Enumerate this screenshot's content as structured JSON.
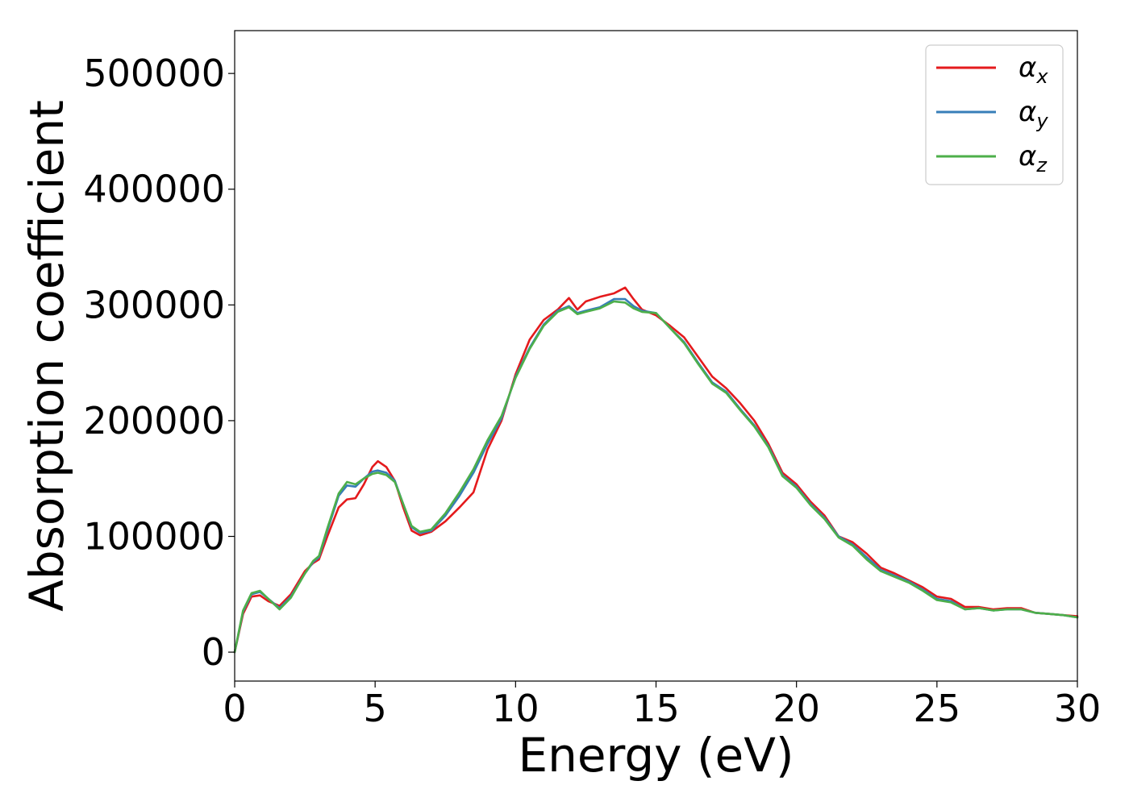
{
  "chart_data": {
    "type": "line",
    "title": "",
    "xlabel": "Energy (eV)",
    "ylabel": "Absorption coefficient",
    "xlim": [
      0,
      30
    ],
    "ylim": [
      -25000,
      537000
    ],
    "xticks": [
      0,
      5,
      10,
      15,
      20,
      25,
      30
    ],
    "xtick_labels": [
      "0",
      "5",
      "10",
      "15",
      "20",
      "25",
      "30"
    ],
    "yticks": [
      0,
      100000,
      200000,
      300000,
      400000,
      500000
    ],
    "ytick_labels": [
      "0",
      "100000",
      "200000",
      "300000",
      "400000",
      "500000"
    ],
    "grid": false,
    "legend_position": "top-right",
    "series": [
      {
        "name": "α",
        "subscript": "x",
        "color": "#e41a1c",
        "points": [
          [
            0,
            0
          ],
          [
            0.3,
            33000
          ],
          [
            0.6,
            48000
          ],
          [
            0.9,
            49000
          ],
          [
            1.2,
            44000
          ],
          [
            1.6,
            40000
          ],
          [
            2.0,
            50000
          ],
          [
            2.5,
            70000
          ],
          [
            2.8,
            77000
          ],
          [
            3.0,
            80000
          ],
          [
            3.3,
            100000
          ],
          [
            3.7,
            125000
          ],
          [
            4.0,
            132000
          ],
          [
            4.3,
            133000
          ],
          [
            4.6,
            145000
          ],
          [
            4.9,
            160000
          ],
          [
            5.1,
            165000
          ],
          [
            5.4,
            160000
          ],
          [
            5.7,
            148000
          ],
          [
            6.0,
            125000
          ],
          [
            6.3,
            105000
          ],
          [
            6.6,
            101000
          ],
          [
            7.0,
            104000
          ],
          [
            7.5,
            113000
          ],
          [
            8.0,
            125000
          ],
          [
            8.5,
            138000
          ],
          [
            9.0,
            175000
          ],
          [
            9.5,
            200000
          ],
          [
            10.0,
            240000
          ],
          [
            10.5,
            270000
          ],
          [
            11.0,
            287000
          ],
          [
            11.5,
            296000
          ],
          [
            11.9,
            306000
          ],
          [
            12.2,
            296000
          ],
          [
            12.5,
            303000
          ],
          [
            13.0,
            307000
          ],
          [
            13.5,
            310000
          ],
          [
            13.9,
            315000
          ],
          [
            14.2,
            305000
          ],
          [
            14.5,
            296000
          ],
          [
            15.0,
            291000
          ],
          [
            15.5,
            282000
          ],
          [
            16.0,
            272000
          ],
          [
            16.5,
            255000
          ],
          [
            17.0,
            238000
          ],
          [
            17.5,
            228000
          ],
          [
            18.0,
            215000
          ],
          [
            18.5,
            200000
          ],
          [
            19.0,
            180000
          ],
          [
            19.5,
            155000
          ],
          [
            20.0,
            145000
          ],
          [
            20.5,
            130000
          ],
          [
            21.0,
            118000
          ],
          [
            21.5,
            100000
          ],
          [
            22.0,
            95000
          ],
          [
            22.5,
            85000
          ],
          [
            23.0,
            73000
          ],
          [
            23.5,
            68000
          ],
          [
            24.0,
            62000
          ],
          [
            24.5,
            56000
          ],
          [
            25.0,
            48000
          ],
          [
            25.5,
            46000
          ],
          [
            26.0,
            39000
          ],
          [
            26.5,
            39000
          ],
          [
            27.0,
            37000
          ],
          [
            27.5,
            38000
          ],
          [
            28.0,
            38000
          ],
          [
            28.5,
            34000
          ],
          [
            29.0,
            33000
          ],
          [
            29.5,
            32000
          ],
          [
            30.0,
            31000
          ]
        ]
      },
      {
        "name": "α",
        "subscript": "y",
        "color": "#377eb8",
        "points": [
          [
            0,
            0
          ],
          [
            0.3,
            35000
          ],
          [
            0.6,
            50000
          ],
          [
            0.9,
            52000
          ],
          [
            1.2,
            46000
          ],
          [
            1.6,
            38000
          ],
          [
            2.0,
            48000
          ],
          [
            2.5,
            68000
          ],
          [
            2.8,
            78000
          ],
          [
            3.0,
            82000
          ],
          [
            3.3,
            105000
          ],
          [
            3.7,
            135000
          ],
          [
            4.0,
            144000
          ],
          [
            4.3,
            143000
          ],
          [
            4.6,
            150000
          ],
          [
            4.9,
            156000
          ],
          [
            5.1,
            157000
          ],
          [
            5.4,
            155000
          ],
          [
            5.7,
            148000
          ],
          [
            6.0,
            128000
          ],
          [
            6.3,
            108000
          ],
          [
            6.6,
            103000
          ],
          [
            7.0,
            105000
          ],
          [
            7.5,
            118000
          ],
          [
            8.0,
            135000
          ],
          [
            8.5,
            155000
          ],
          [
            9.0,
            180000
          ],
          [
            9.5,
            202000
          ],
          [
            10.0,
            238000
          ],
          [
            10.5,
            263000
          ],
          [
            11.0,
            283000
          ],
          [
            11.5,
            295000
          ],
          [
            11.9,
            299000
          ],
          [
            12.2,
            293000
          ],
          [
            12.5,
            295000
          ],
          [
            13.0,
            298000
          ],
          [
            13.5,
            305000
          ],
          [
            13.9,
            305000
          ],
          [
            14.2,
            299000
          ],
          [
            14.5,
            295000
          ],
          [
            15.0,
            293000
          ],
          [
            15.5,
            280000
          ],
          [
            16.0,
            268000
          ],
          [
            16.5,
            250000
          ],
          [
            17.0,
            233000
          ],
          [
            17.5,
            225000
          ],
          [
            18.0,
            210000
          ],
          [
            18.5,
            196000
          ],
          [
            19.0,
            178000
          ],
          [
            19.5,
            153000
          ],
          [
            20.0,
            143000
          ],
          [
            20.5,
            128000
          ],
          [
            21.0,
            116000
          ],
          [
            21.5,
            100000
          ],
          [
            22.0,
            93000
          ],
          [
            22.5,
            82000
          ],
          [
            23.0,
            71000
          ],
          [
            23.5,
            66000
          ],
          [
            24.0,
            61000
          ],
          [
            24.5,
            54000
          ],
          [
            25.0,
            46000
          ],
          [
            25.5,
            44000
          ],
          [
            26.0,
            37000
          ],
          [
            26.5,
            38000
          ],
          [
            27.0,
            36000
          ],
          [
            27.5,
            37000
          ],
          [
            28.0,
            37000
          ],
          [
            28.5,
            34000
          ],
          [
            29.0,
            33000
          ],
          [
            29.5,
            32000
          ],
          [
            30.0,
            30000
          ]
        ]
      },
      {
        "name": "α",
        "subscript": "z",
        "color": "#4daf4a",
        "points": [
          [
            0,
            0
          ],
          [
            0.3,
            36000
          ],
          [
            0.6,
            51000
          ],
          [
            0.9,
            53000
          ],
          [
            1.2,
            46000
          ],
          [
            1.6,
            37000
          ],
          [
            2.0,
            47000
          ],
          [
            2.5,
            68000
          ],
          [
            2.8,
            79000
          ],
          [
            3.0,
            83000
          ],
          [
            3.3,
            107000
          ],
          [
            3.7,
            137000
          ],
          [
            4.0,
            147000
          ],
          [
            4.3,
            145000
          ],
          [
            4.6,
            150000
          ],
          [
            4.9,
            154000
          ],
          [
            5.1,
            155000
          ],
          [
            5.4,
            153000
          ],
          [
            5.7,
            147000
          ],
          [
            6.0,
            128000
          ],
          [
            6.3,
            109000
          ],
          [
            6.6,
            104000
          ],
          [
            7.0,
            106000
          ],
          [
            7.5,
            120000
          ],
          [
            8.0,
            138000
          ],
          [
            8.5,
            158000
          ],
          [
            9.0,
            183000
          ],
          [
            9.5,
            204000
          ],
          [
            10.0,
            237000
          ],
          [
            10.5,
            262000
          ],
          [
            11.0,
            282000
          ],
          [
            11.5,
            294000
          ],
          [
            11.9,
            298000
          ],
          [
            12.2,
            292000
          ],
          [
            12.5,
            294000
          ],
          [
            13.0,
            297000
          ],
          [
            13.5,
            303000
          ],
          [
            13.9,
            302000
          ],
          [
            14.2,
            297000
          ],
          [
            14.5,
            294000
          ],
          [
            15.0,
            293000
          ],
          [
            15.5,
            280000
          ],
          [
            16.0,
            267000
          ],
          [
            16.5,
            249000
          ],
          [
            17.0,
            232000
          ],
          [
            17.5,
            224000
          ],
          [
            18.0,
            209000
          ],
          [
            18.5,
            195000
          ],
          [
            19.0,
            177000
          ],
          [
            19.5,
            152000
          ],
          [
            20.0,
            142000
          ],
          [
            20.5,
            127000
          ],
          [
            21.0,
            115000
          ],
          [
            21.5,
            99000
          ],
          [
            22.0,
            92000
          ],
          [
            22.5,
            80000
          ],
          [
            23.0,
            70000
          ],
          [
            23.5,
            65000
          ],
          [
            24.0,
            60000
          ],
          [
            24.5,
            53000
          ],
          [
            25.0,
            45000
          ],
          [
            25.5,
            43000
          ],
          [
            26.0,
            37000
          ],
          [
            26.5,
            38000
          ],
          [
            27.0,
            36000
          ],
          [
            27.5,
            37000
          ],
          [
            28.0,
            37000
          ],
          [
            28.5,
            34000
          ],
          [
            29.0,
            33000
          ],
          [
            29.5,
            32000
          ],
          [
            30.0,
            30000
          ]
        ]
      }
    ]
  }
}
